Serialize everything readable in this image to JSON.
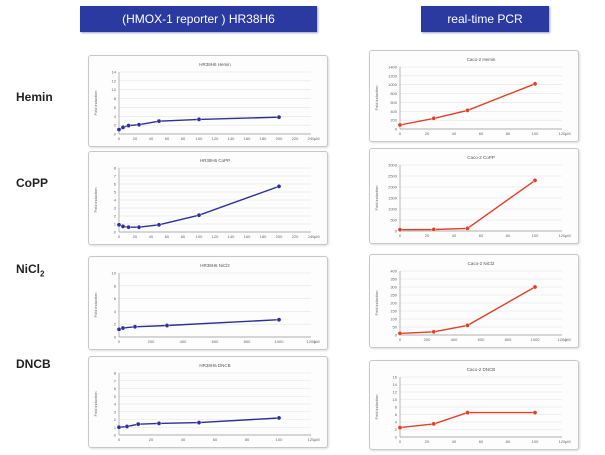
{
  "headers": {
    "left": "(HMOX-1 reporter ) HR38H6",
    "right": "real-time PCR"
  },
  "rows": [
    {
      "label_main": "Hemin",
      "label_sub": ""
    },
    {
      "label_main": "CoPP",
      "label_sub": ""
    },
    {
      "label_main": "NiCl",
      "label_sub": "2"
    },
    {
      "label_main": "DNCB",
      "label_sub": ""
    }
  ],
  "colors": {
    "reporter": "#2f2f9a",
    "pcr": "#e0402a",
    "header_bg": "#2b3aa0"
  },
  "chart_data": [
    {
      "id": "reporter-hemin",
      "type": "line",
      "title": "HR38H6 Hemin",
      "x": [
        0,
        5,
        12,
        25,
        50,
        100,
        200
      ],
      "y": [
        1.0,
        1.5,
        1.9,
        2.1,
        2.9,
        3.3,
        3.8
      ],
      "xlim": [
        0,
        240
      ],
      "ylim": [
        0,
        14
      ],
      "yticks": [
        0,
        2,
        4,
        6,
        8,
        10,
        12,
        14
      ],
      "xticks": [
        0,
        20,
        40,
        60,
        80,
        100,
        120,
        140,
        160,
        180,
        200,
        220,
        240
      ],
      "ylabel": "Fold induction",
      "xunit": "μM"
    },
    {
      "id": "reporter-copp",
      "type": "line",
      "title": "HR38H6 CoPP",
      "x": [
        0,
        5,
        12,
        25,
        50,
        100,
        200
      ],
      "y": [
        0.9,
        0.7,
        0.6,
        0.6,
        0.9,
        2.1,
        5.7
      ],
      "xlim": [
        0,
        240
      ],
      "ylim": [
        0,
        8
      ],
      "yticks": [
        0,
        1,
        2,
        3,
        4,
        5,
        6,
        7,
        8
      ],
      "xticks": [
        0,
        20,
        40,
        60,
        80,
        100,
        120,
        140,
        160,
        180,
        200,
        220,
        240
      ],
      "ylabel": "Fold induction",
      "xunit": "μM"
    },
    {
      "id": "reporter-nicl2",
      "type": "line",
      "title": "HR38H6 NiCl2",
      "x": [
        0,
        25,
        100,
        300,
        1000
      ],
      "y": [
        1.2,
        1.4,
        1.6,
        1.8,
        2.7
      ],
      "xlim": [
        0,
        1200
      ],
      "ylim": [
        0,
        10
      ],
      "yticks": [
        0,
        2,
        4,
        6,
        8,
        10
      ],
      "xticks": [
        0,
        200,
        400,
        600,
        800,
        1000,
        1200
      ],
      "ylabel": "Fold induction",
      "xunit": "μM"
    },
    {
      "id": "reporter-dncb",
      "type": "line",
      "title": "HR38H6 DNCB",
      "x": [
        0,
        5,
        12,
        25,
        50,
        100
      ],
      "y": [
        1.0,
        1.1,
        1.4,
        1.5,
        1.6,
        2.2
      ],
      "xlim": [
        0,
        120
      ],
      "ylim": [
        0,
        8
      ],
      "yticks": [
        0,
        1,
        2,
        3,
        4,
        5,
        6,
        7,
        8
      ],
      "xticks": [
        0,
        20,
        40,
        60,
        80,
        100,
        120
      ],
      "ylabel": "Fold induction",
      "xunit": "μM"
    },
    {
      "id": "pcr-hemin",
      "type": "line",
      "title": "Caco-2 Hemin",
      "x": [
        0,
        25,
        50,
        100
      ],
      "y": [
        90,
        240,
        420,
        1020
      ],
      "xlim": [
        0,
        120
      ],
      "ylim": [
        0,
        1400
      ],
      "yticks": [
        0,
        200,
        400,
        600,
        800,
        1000,
        1200,
        1400
      ],
      "xticks": [
        0,
        20,
        40,
        60,
        80,
        100,
        120
      ],
      "ylabel": "Fold induction",
      "xunit": "μM"
    },
    {
      "id": "pcr-copp",
      "type": "line",
      "title": "Caco-2 CoPP",
      "x": [
        0,
        25,
        50,
        100
      ],
      "y": [
        60,
        70,
        120,
        2300
      ],
      "xlim": [
        0,
        120
      ],
      "ylim": [
        0,
        3000
      ],
      "yticks": [
        0,
        500,
        1000,
        1500,
        2000,
        2500,
        3000
      ],
      "xticks": [
        0,
        20,
        40,
        60,
        80,
        100,
        120
      ],
      "ylabel": "Fold induction",
      "xunit": "μM"
    },
    {
      "id": "pcr-nicl2",
      "type": "line",
      "title": "Caco-2 NiCl2",
      "x": [
        0,
        250,
        500,
        1000
      ],
      "y": [
        10,
        20,
        60,
        300
      ],
      "xlim": [
        0,
        1200
      ],
      "ylim": [
        0,
        400
      ],
      "yticks": [
        0,
        50,
        100,
        150,
        200,
        250,
        300,
        350,
        400
      ],
      "xticks": [
        0,
        200,
        400,
        600,
        800,
        1000,
        1200
      ],
      "ylabel": "Fold induction",
      "xunit": "μM"
    },
    {
      "id": "pcr-dncb",
      "type": "line",
      "title": "Caco-2 DNCB",
      "x": [
        0,
        25,
        50,
        100
      ],
      "y": [
        2.5,
        3.5,
        6.5,
        6.5
      ],
      "xlim": [
        0,
        120
      ],
      "ylim": [
        0,
        16
      ],
      "yticks": [
        0,
        2,
        4,
        6,
        8,
        10,
        12,
        14,
        16
      ],
      "xticks": [
        0,
        20,
        40,
        60,
        80,
        100,
        120
      ],
      "ylabel": "Fold induction",
      "xunit": "μM"
    }
  ]
}
